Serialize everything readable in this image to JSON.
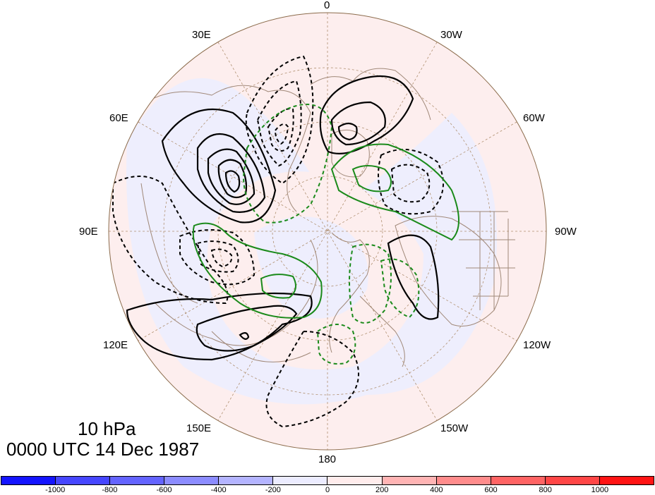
{
  "map": {
    "projection": "north-polar-stereographic",
    "level_label": "10 hPa",
    "time_label": "0000 UTC 14 Dec 1987",
    "longitude_labels": [
      {
        "name": "lon-label-0",
        "text": "0"
      },
      {
        "name": "lon-label-30w",
        "text": "30W"
      },
      {
        "name": "lon-label-60w",
        "text": "60W"
      },
      {
        "name": "lon-label-90w",
        "text": "90W"
      },
      {
        "name": "lon-label-120w",
        "text": "120W"
      },
      {
        "name": "lon-label-150w",
        "text": "150W"
      },
      {
        "name": "lon-label-180",
        "text": "180"
      },
      {
        "name": "lon-label-150e",
        "text": "150E"
      },
      {
        "name": "lon-label-120e",
        "text": "120E"
      },
      {
        "name": "lon-label-90e",
        "text": "90E"
      },
      {
        "name": "lon-label-60e",
        "text": "60E"
      },
      {
        "name": "lon-label-30e",
        "text": "30E"
      }
    ],
    "contour_styles": {
      "positive": {
        "color": "#000000",
        "dashed": false
      },
      "negative": {
        "color": "#000000",
        "dashed": true
      },
      "green_positive": {
        "color": "#1a8a1a",
        "dashed": false
      },
      "green_negative": {
        "color": "#1a8a1a",
        "dashed": true
      }
    },
    "coastline_color": "#a08878",
    "graticule_color": "#b09070",
    "shading": {
      "positive_tint": "#fdeeee",
      "negative_tint": "#eeeefd"
    }
  },
  "colorbar": {
    "colors": [
      "#1414ff",
      "#4646ff",
      "#6464ff",
      "#8c8cff",
      "#b4b4ff",
      "#ececff",
      "#ffecec",
      "#ffb4b4",
      "#ff8c8c",
      "#ff6464",
      "#ff4646",
      "#ff1414"
    ],
    "labels": [
      "-1000",
      "-800",
      "-600",
      "-400",
      "-200",
      "0",
      "200",
      "400",
      "600",
      "800",
      "1000"
    ]
  }
}
